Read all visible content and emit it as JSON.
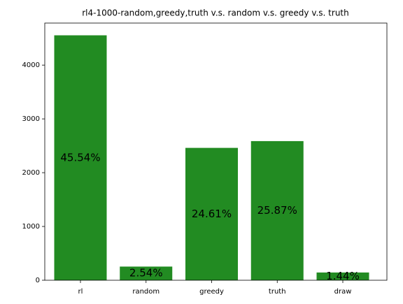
{
  "chart_data": {
    "type": "bar",
    "title": "rl4-1000-random,greedy,truth v.s. random v.s. greedy v.s. truth",
    "categories": [
      "rl",
      "random",
      "greedy",
      "truth",
      "draw"
    ],
    "values": [
      4554,
      254,
      2461,
      2587,
      144
    ],
    "value_labels": [
      "45.54%",
      "2.54%",
      "24.61%",
      "25.87%",
      "1.44%"
    ],
    "color": "#228b22",
    "ylim": [
      0,
      4781.7
    ],
    "yticks": [
      0,
      1000,
      2000,
      3000,
      4000
    ],
    "grid": false
  }
}
